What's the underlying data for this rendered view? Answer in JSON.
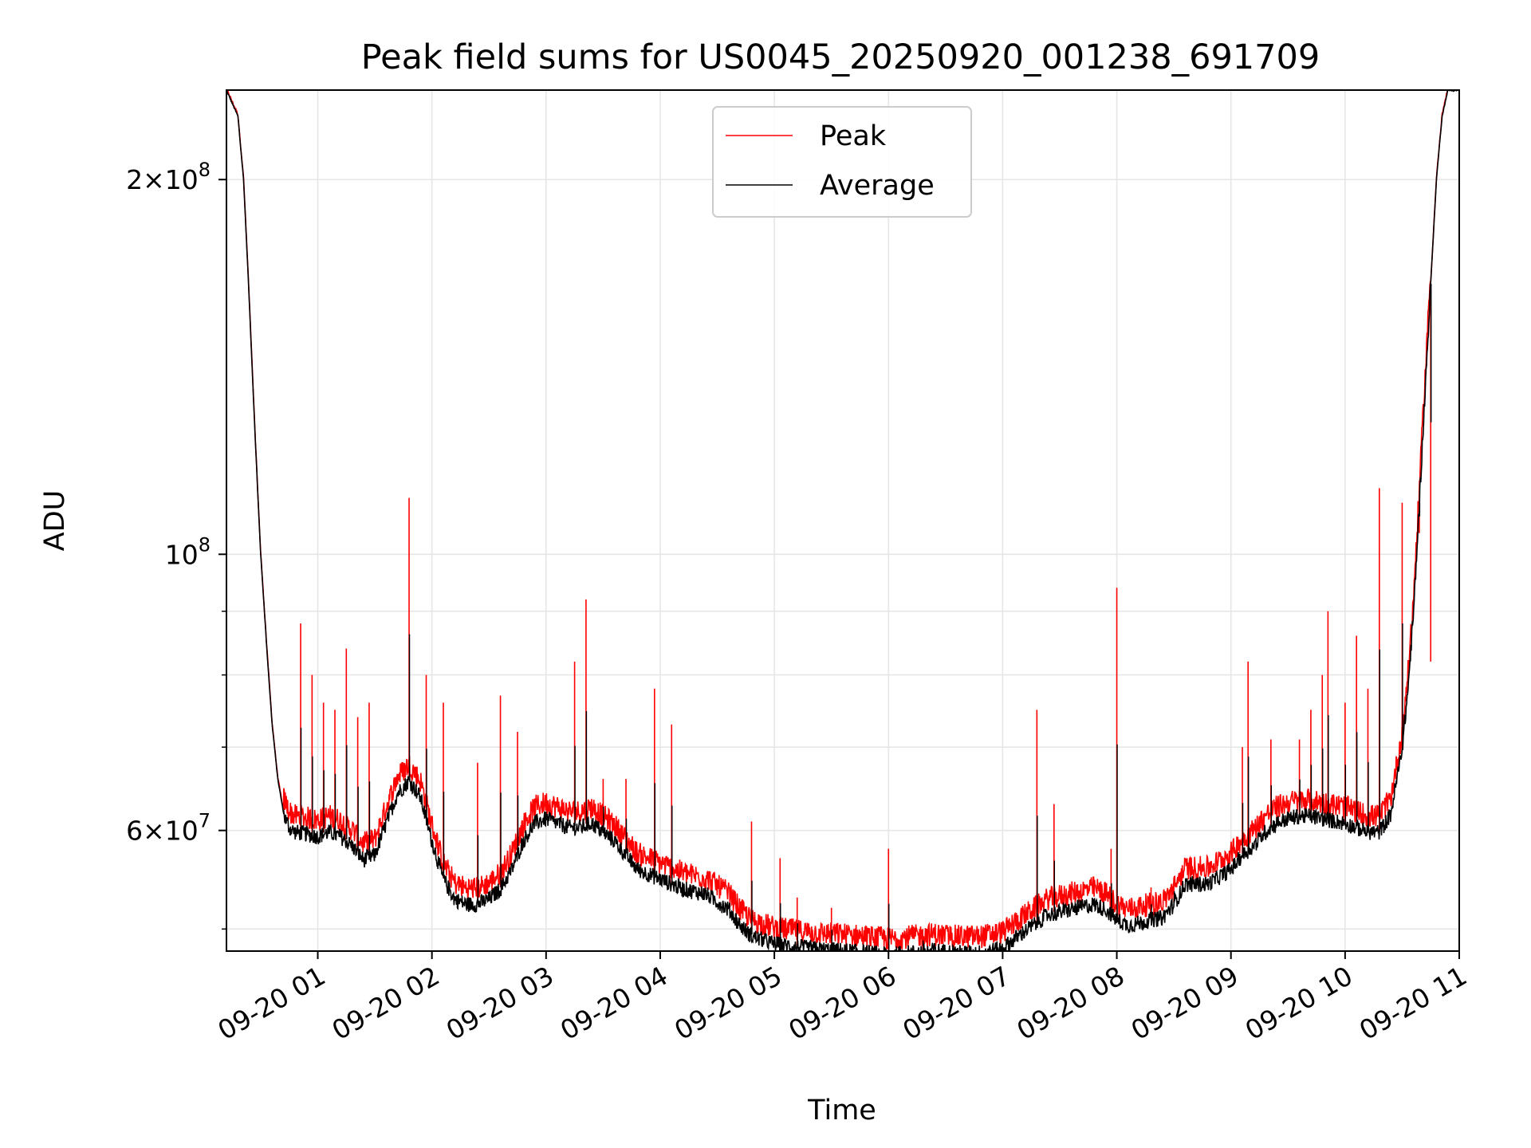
{
  "colors": {
    "peak": "#ff0000",
    "average": "#000000",
    "grid": "#e6e6e6"
  },
  "chart_data": {
    "type": "line",
    "title": "Peak field sums for US0045_20250920_001238_691709",
    "xlabel": "Time",
    "ylabel": "ADU",
    "yscale": "log",
    "xlim": [
      0.2,
      11.0
    ],
    "ylim": [
      48000000,
      236000000
    ],
    "grid": true,
    "legend_position": "top-center",
    "x_unit": "hours since 2025-09-20 00:00",
    "x_ticks": [
      {
        "value": 1,
        "label": "09-20 01"
      },
      {
        "value": 2,
        "label": "09-20 02"
      },
      {
        "value": 3,
        "label": "09-20 03"
      },
      {
        "value": 4,
        "label": "09-20 04"
      },
      {
        "value": 5,
        "label": "09-20 05"
      },
      {
        "value": 6,
        "label": "09-20 06"
      },
      {
        "value": 7,
        "label": "09-20 07"
      },
      {
        "value": 8,
        "label": "09-20 08"
      },
      {
        "value": 9,
        "label": "09-20 09"
      },
      {
        "value": 10,
        "label": "09-20 10"
      },
      {
        "value": 11,
        "label": "09-20 11"
      }
    ],
    "y_major_ticks": [
      {
        "value": 60000000,
        "mantissa": "6",
        "exp": "7"
      },
      {
        "value": 100000000,
        "mantissa": "",
        "exp": "8"
      },
      {
        "value": 200000000,
        "mantissa": "2",
        "exp": "8"
      }
    ],
    "y_minor_ticks": [
      50000000,
      70000000,
      80000000,
      90000000
    ],
    "series": [
      {
        "name": "Average",
        "color": "#000000",
        "x": [
          0.2,
          0.3,
          0.35,
          0.4,
          0.45,
          0.5,
          0.55,
          0.6,
          0.65,
          0.7,
          0.75,
          0.8,
          0.9,
          1.0,
          1.1,
          1.2,
          1.3,
          1.4,
          1.5,
          1.6,
          1.7,
          1.8,
          1.9,
          2.0,
          2.1,
          2.2,
          2.3,
          2.4,
          2.5,
          2.6,
          2.7,
          2.8,
          2.9,
          3.0,
          3.1,
          3.2,
          3.3,
          3.4,
          3.5,
          3.6,
          3.7,
          3.8,
          3.9,
          4.0,
          4.1,
          4.2,
          4.4,
          4.6,
          4.7,
          4.8,
          5.0,
          5.2,
          5.4,
          5.6,
          5.8,
          6.0,
          6.2,
          6.4,
          6.6,
          6.8,
          7.0,
          7.2,
          7.4,
          7.6,
          7.8,
          7.9,
          8.0,
          8.1,
          8.2,
          8.3,
          8.4,
          8.5,
          8.6,
          8.8,
          9.0,
          9.1,
          9.2,
          9.3,
          9.4,
          9.5,
          9.6,
          9.7,
          9.8,
          10.0,
          10.2,
          10.3,
          10.4,
          10.5,
          10.55,
          10.6,
          10.65,
          10.7,
          10.75,
          10.8,
          10.85,
          10.9,
          11.0
        ],
        "y": [
          236000000,
          225000000,
          200000000,
          160000000,
          125000000,
          100000000,
          85000000,
          73000000,
          66000000,
          62000000,
          60500000,
          60000000,
          59800000,
          59500000,
          60000000,
          59500000,
          58500000,
          57000000,
          57500000,
          61000000,
          64500000,
          66000000,
          64000000,
          59000000,
          55000000,
          53000000,
          52500000,
          52500000,
          53000000,
          54000000,
          56000000,
          59000000,
          61000000,
          61500000,
          61000000,
          60500000,
          60500000,
          61000000,
          60000000,
          59000000,
          57500000,
          56000000,
          55500000,
          55000000,
          54500000,
          54000000,
          53500000,
          52000000,
          50500000,
          49500000,
          48800000,
          48500000,
          48300000,
          48200000,
          48000000,
          47800000,
          48000000,
          48200000,
          48000000,
          48000000,
          48400000,
          50000000,
          51500000,
          52000000,
          52500000,
          52000000,
          51000000,
          50500000,
          50700000,
          51000000,
          51200000,
          52500000,
          54500000,
          54500000,
          56000000,
          57500000,
          58500000,
          60000000,
          61000000,
          61500000,
          61800000,
          61800000,
          61500000,
          61000000,
          60000000,
          60000000,
          62000000,
          70000000,
          78000000,
          90000000,
          110000000,
          135000000,
          165000000,
          200000000,
          225000000,
          236000000,
          236000000
        ]
      },
      {
        "name": "Peak",
        "color": "#ff0000",
        "spikes": [
          [
            0.85,
            88000000
          ],
          [
            0.95,
            80000000
          ],
          [
            1.05,
            76000000
          ],
          [
            1.15,
            75000000
          ],
          [
            1.25,
            84000000
          ],
          [
            1.35,
            74000000
          ],
          [
            1.45,
            76000000
          ],
          [
            1.8,
            111000000
          ],
          [
            1.95,
            80000000
          ],
          [
            2.1,
            76000000
          ],
          [
            2.4,
            68000000
          ],
          [
            2.6,
            77000000
          ],
          [
            2.75,
            72000000
          ],
          [
            3.25,
            82000000
          ],
          [
            3.35,
            92000000
          ],
          [
            3.5,
            66000000
          ],
          [
            3.7,
            66000000
          ],
          [
            3.95,
            78000000
          ],
          [
            4.1,
            73000000
          ],
          [
            4.8,
            61000000
          ],
          [
            5.05,
            57000000
          ],
          [
            5.2,
            53000000
          ],
          [
            5.5,
            52000000
          ],
          [
            6.0,
            58000000
          ],
          [
            6.3,
            50000000
          ],
          [
            7.3,
            75000000
          ],
          [
            7.45,
            63000000
          ],
          [
            8.0,
            94000000
          ],
          [
            7.95,
            58000000
          ],
          [
            8.3,
            54000000
          ],
          [
            8.5,
            55000000
          ],
          [
            9.1,
            70000000
          ],
          [
            9.15,
            82000000
          ],
          [
            9.35,
            71000000
          ],
          [
            9.6,
            71000000
          ],
          [
            9.7,
            75000000
          ],
          [
            9.8,
            80000000
          ],
          [
            9.85,
            90000000
          ],
          [
            10.0,
            76000000
          ],
          [
            10.1,
            86000000
          ],
          [
            10.2,
            78000000
          ],
          [
            10.3,
            113000000
          ],
          [
            10.5,
            110000000
          ],
          [
            10.65,
            104000000
          ],
          [
            10.75,
            82000000
          ]
        ]
      }
    ],
    "legend": [
      {
        "label": "Peak",
        "color": "#ff0000"
      },
      {
        "label": "Average",
        "color": "#000000"
      }
    ]
  }
}
